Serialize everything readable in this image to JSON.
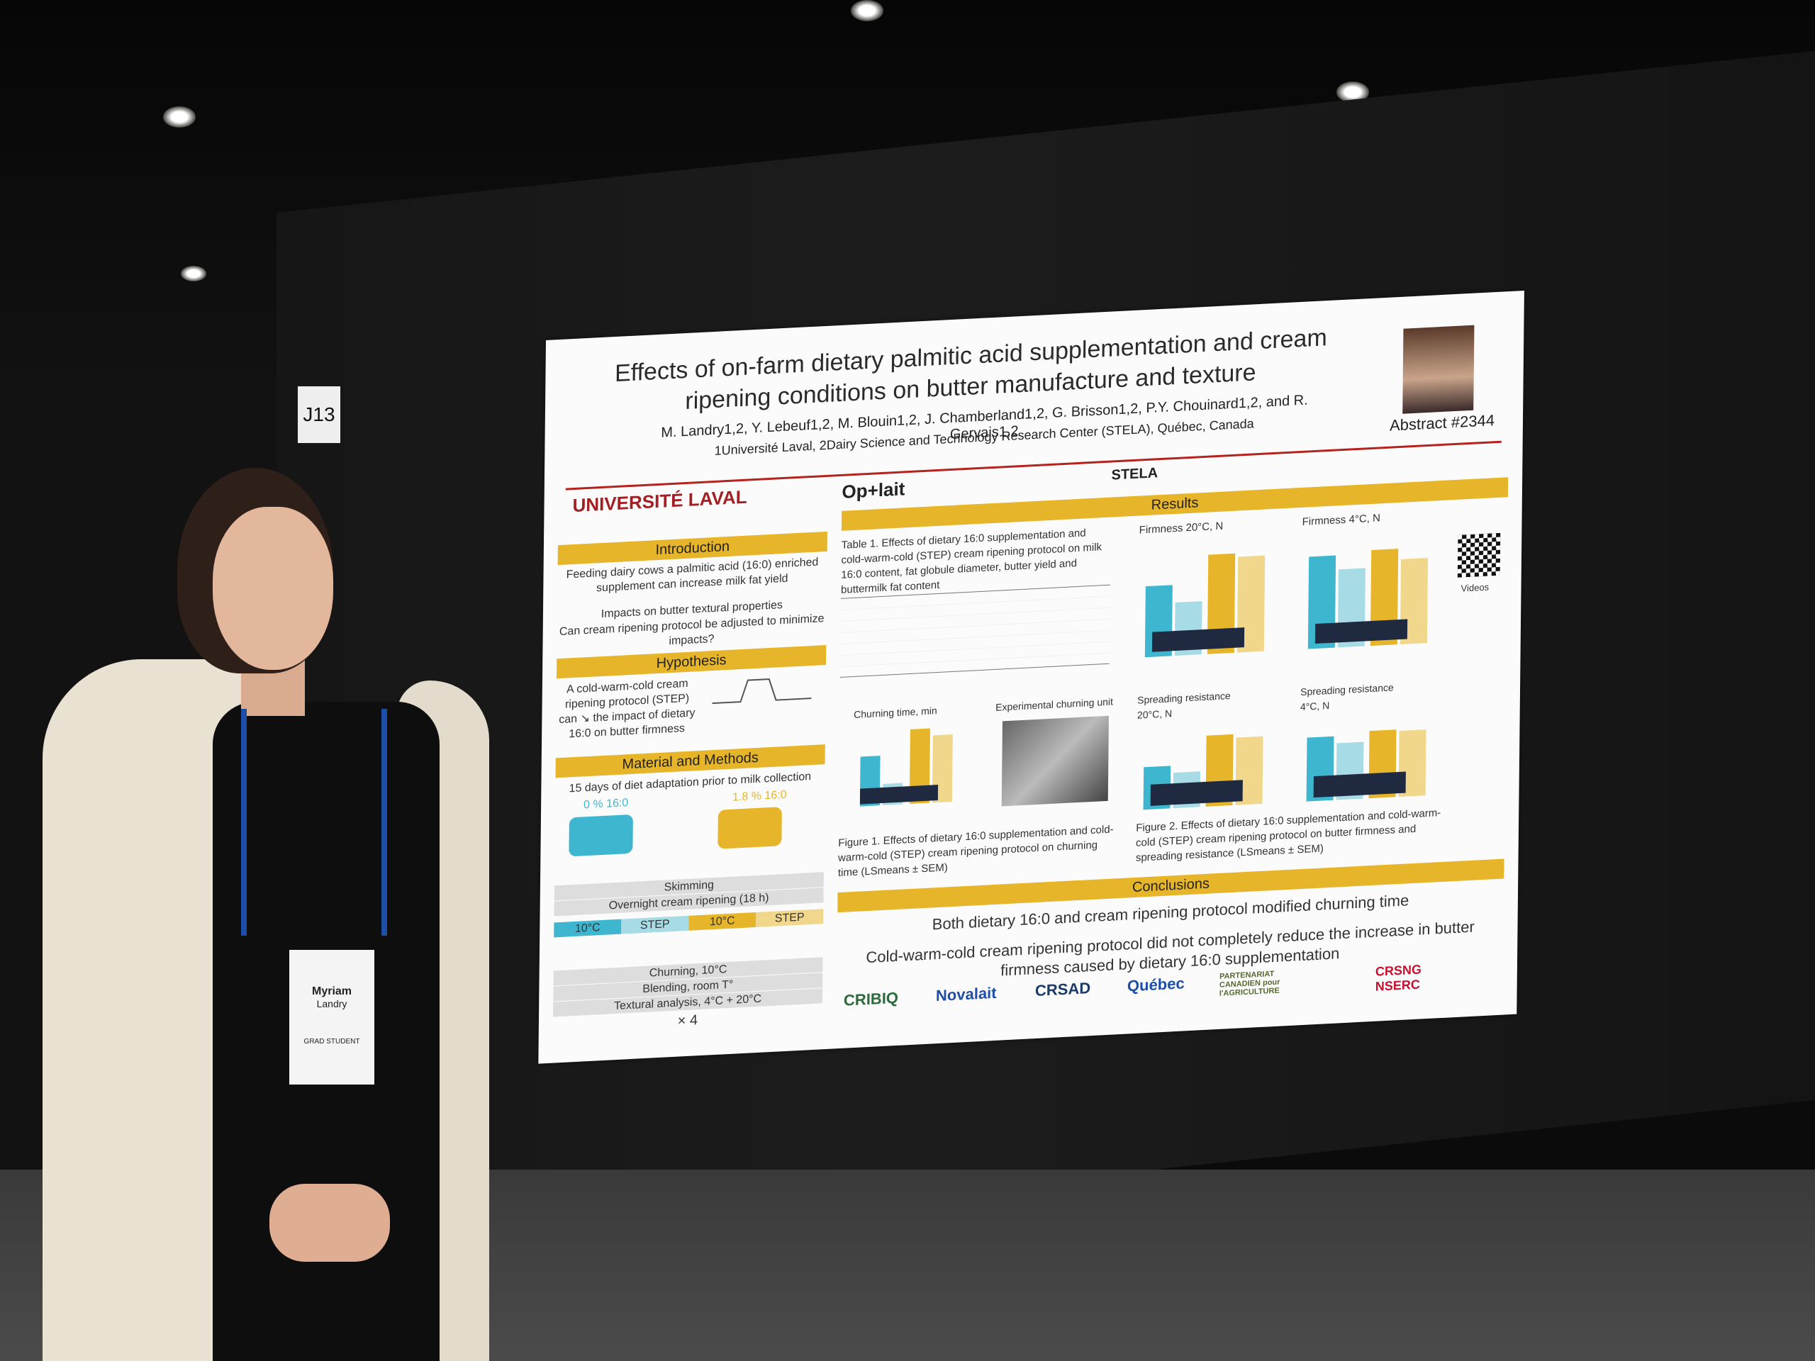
{
  "booth": {
    "number": "J13"
  },
  "poster": {
    "title": "Effects of on-farm dietary palmitic acid supplementation and cream ripening conditions on butter manufacture and texture",
    "authors": "M. Landry1,2, Y. Lebeuf1,2, M. Blouin1,2, J. Chamberland1,2, G. Brisson1,2, P.Y. Chouinard1,2, and R. Gervais1,2",
    "affiliations": "1Université Laval, 2Dairy Science and Technology Research Center (STELA), Québec, Canada",
    "abstract": "Abstract #2344",
    "logos": {
      "laval": "UNIVERSITÉ LAVAL",
      "oplait": "Op+lait",
      "stela": "STELA"
    },
    "sections": {
      "intro_title": "Introduction",
      "intro_1": "Feeding dairy cows a palmitic acid (16:0) enriched supplement can increase milk fat yield",
      "intro_2": "Impacts on butter textural properties",
      "intro_3": "Can cream ripening protocol be adjusted to minimize impacts?",
      "hyp_title": "Hypothesis",
      "hyp_text": "A cold-warm-cold cream ripening protocol (STEP) can ↘ the impact of dietary 16:0 on butter firmness",
      "methods_title": "Material and Methods",
      "methods_1": "15 days of diet adaptation prior to milk collection",
      "diet_a": "0 % 16:0",
      "diet_b": "1.8 % 16:0",
      "skimming": "Skimming",
      "overnight": "Overnight cream ripening (18 h)",
      "treatments": [
        "10°C",
        "STEP",
        "10°C",
        "STEP"
      ],
      "churning": "Churning, 10°C",
      "blending": "Blending, room T°",
      "textural": "Textural analysis, 4°C + 20°C",
      "times": "× 4",
      "results_title": "Results",
      "table_caption": "Table 1. Effects of dietary 16:0 supplementation and cold-warm-cold (STEP) cream ripening protocol on milk 16:0 content, fat globule diameter, butter yield and buttermilk fat content",
      "fig1_caption": "Figure 1. Effects of dietary 16:0 supplementation and cold-warm-cold (STEP) cream ripening protocol on churning time (LSmeans ± SEM)",
      "fig2_caption": "Figure 2. Effects of dietary 16:0 supplementation and cold-warm-cold (STEP) cream ripening protocol on butter firmness and spreading resistance (LSmeans ± SEM)",
      "churning_title": "Churning time, min",
      "unit_title": "Experimental churning unit",
      "firm20_title": "Firmness 20°C, N",
      "firm4_title": "Firmness 4°C, N",
      "spread20_title": "Spreading resistance 20°C, N",
      "spread4_title": "Spreading resistance 4°C, N",
      "videos": "Videos",
      "conclusions_title": "Conclusions",
      "concl_1": "Both dietary 16:0 and cream ripening protocol modified churning time",
      "concl_2": "Cold-warm-cold cream ripening protocol did not completely reduce the increase in butter firmness caused by dietary 16:0 supplementation"
    },
    "sponsors": [
      "CRIBIQ",
      "Novalait",
      "CRSAD",
      "Québec",
      "PARTENARIAT CANADIEN pour l'AGRICULTURE",
      "CRSNG NSERC"
    ]
  },
  "badge": {
    "first": "Myriam",
    "last": "Landry",
    "role": "GRAD STUDENT"
  },
  "colors": {
    "accent_yellow": "#e7b52a",
    "bar_blue": "#3fb6cf",
    "bar_gold": "#e7b52a",
    "red_line": "#b5231f",
    "lanyard": "#1d4fa8"
  }
}
